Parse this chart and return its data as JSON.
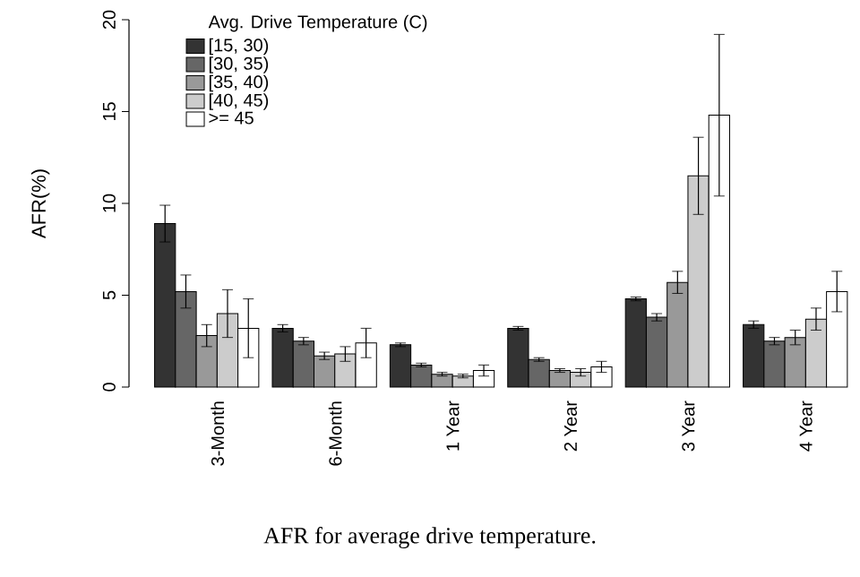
{
  "chart_data": {
    "type": "bar",
    "ylabel": "AFR(%)",
    "legend_title": "Avg. Drive Temperature (C)",
    "annotations": [
      "AFR for average drive temperature."
    ],
    "categories": [
      "3-Month",
      "6-Month",
      "1 Year",
      "2 Year",
      "3 Year",
      "4 Year"
    ],
    "series": [
      {
        "name": "[15, 30)",
        "color": "#333333",
        "values": [
          8.9,
          3.2,
          2.3,
          3.2,
          4.8,
          3.4
        ],
        "errors": [
          1.0,
          0.2,
          0.1,
          0.1,
          0.1,
          0.2
        ]
      },
      {
        "name": "[30, 35)",
        "color": "#666666",
        "values": [
          5.2,
          2.5,
          1.2,
          1.5,
          3.8,
          2.5
        ],
        "errors": [
          0.9,
          0.2,
          0.1,
          0.1,
          0.2,
          0.2
        ]
      },
      {
        "name": "[35, 40)",
        "color": "#999999",
        "values": [
          2.8,
          1.7,
          0.7,
          0.9,
          5.7,
          2.7
        ],
        "errors": [
          0.6,
          0.2,
          0.1,
          0.1,
          0.6,
          0.4
        ]
      },
      {
        "name": "[40, 45)",
        "color": "#cccccc",
        "values": [
          4.0,
          1.8,
          0.6,
          0.8,
          11.5,
          3.7
        ],
        "errors": [
          1.3,
          0.4,
          0.1,
          0.2,
          2.1,
          0.6
        ]
      },
      {
        "name": ">= 45",
        "color": "#ffffff",
        "values": [
          3.2,
          2.4,
          0.9,
          1.1,
          14.8,
          5.2
        ],
        "errors": [
          1.6,
          0.8,
          0.3,
          0.3,
          4.4,
          1.1
        ]
      }
    ],
    "ylim": [
      0,
      20
    ],
    "yticks": [
      0,
      5,
      10,
      15,
      20
    ],
    "legend": "top left"
  }
}
